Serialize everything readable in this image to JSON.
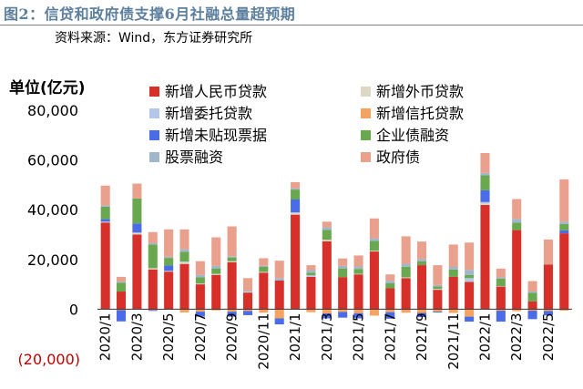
{
  "header": {
    "figure_title": "图2：信贷和政府债支撑6月社融总量超预期",
    "source_note": "资料来源：Wind，东方证券研究所"
  },
  "chart_data": {
    "type": "bar",
    "stacked": true,
    "unit_label": "单位(亿元)",
    "ylim": [
      -20000,
      80000
    ],
    "yticks": [
      -20000,
      0,
      20000,
      40000,
      60000,
      80000
    ],
    "ytick_labels": [
      "(20,000)",
      "0",
      "20,000",
      "40,000",
      "60,000",
      "80,000"
    ],
    "negative_tick_color": "#c00000",
    "grid": false,
    "legend_position": "top",
    "categories": [
      "2020/1",
      "2020/2",
      "2020/3",
      "2020/4",
      "2020/5",
      "2020/6",
      "2020/7",
      "2020/8",
      "2020/9",
      "2020/10",
      "2020/11",
      "2020/12",
      "2021/1",
      "2021/2",
      "2021/3",
      "2021/4",
      "2021/5",
      "2021/6",
      "2021/7",
      "2021/8",
      "2021/9",
      "2021/10",
      "2021/11",
      "2021/12",
      "2022/1",
      "2022/2",
      "2022/3",
      "2022/4",
      "2022/5",
      "2022/6"
    ],
    "xtick_labels": [
      "2020/1",
      "2020/3",
      "2020/5",
      "2020/7",
      "2020/9",
      "2020/11",
      "2021/1",
      "2021/3",
      "2021/5",
      "2021/7",
      "2021/9",
      "2021/11",
      "2022/1",
      "2022/3",
      "2022/5"
    ],
    "series": [
      {
        "name": "新增人民币贷款",
        "color": "#d7302b",
        "values": [
          34900,
          7100,
          30000,
          16000,
          15100,
          18200,
          10000,
          13800,
          18900,
          6700,
          14700,
          11500,
          38000,
          13100,
          27300,
          12900,
          14000,
          23200,
          8400,
          12500,
          17700,
          7800,
          13000,
          11000,
          41900,
          9100,
          31800,
          3100,
          18000,
          30500
        ]
      },
      {
        "name": "新增外币贷款",
        "color": "#ded7c5",
        "values": [
          100,
          0,
          800,
          500,
          300,
          700,
          300,
          400,
          400,
          300,
          300,
          0,
          900,
          100,
          600,
          0,
          200,
          300,
          0,
          300,
          0,
          200,
          0,
          0,
          600,
          200,
          0,
          0,
          0,
          0
        ]
      },
      {
        "name": "新增委托贷款",
        "color": "#b4c7e7",
        "values": [
          200,
          0,
          0,
          0,
          0,
          200,
          0,
          0,
          0,
          0,
          0,
          0,
          0,
          500,
          0,
          0,
          0,
          0,
          0,
          0,
          0,
          200,
          0,
          1500,
          600,
          0,
          0,
          0,
          0,
          0
        ]
      },
      {
        "name": "新增信托贷款",
        "color": "#f4a460",
        "values": [
          0,
          -400,
          0,
          -400,
          -200,
          -1300,
          -1000,
          -500,
          -1000,
          -700,
          -1400,
          -3700,
          0,
          -1200,
          -1700,
          -1100,
          -1600,
          -2600,
          -1200,
          -1400,
          -1500,
          -900,
          -1500,
          -3000,
          0,
          -600,
          -800,
          -600,
          -700,
          -600
        ]
      },
      {
        "name": "新增未贴现票据",
        "color": "#4a6ce8",
        "values": [
          1000,
          -4500,
          3700,
          -300,
          2200,
          0,
          -2000,
          0,
          -2000,
          -1700,
          0,
          -2400,
          5200,
          0,
          -2000,
          -2300,
          -2100,
          0,
          -2600,
          0,
          -1700,
          -400,
          0,
          -2000,
          4700,
          -4400,
          0,
          -3400,
          -1800,
          1200
        ]
      },
      {
        "name": "企业债融资",
        "color": "#6aa84f",
        "values": [
          5000,
          3500,
          10000,
          9500,
          3000,
          4000,
          2500,
          2200,
          1500,
          0,
          2000,
          0,
          4000,
          1000,
          4000,
          3500,
          2000,
          4000,
          2000,
          4300,
          1500,
          1000,
          3000,
          1300,
          6000,
          3000,
          3000,
          3500,
          0,
          2500
        ]
      },
      {
        "name": "股票融资",
        "color": "#9fb6cb",
        "values": [
          500,
          500,
          0,
          500,
          500,
          1000,
          1000,
          1000,
          500,
          500,
          500,
          1000,
          500,
          1000,
          1000,
          1000,
          1000,
          1000,
          1000,
          1200,
          1000,
          500,
          1000,
          2000,
          1000,
          500,
          1500,
          500,
          0,
          1000
        ]
      },
      {
        "name": "政府债",
        "color": "#e9a18e",
        "values": [
          8000,
          1900,
          6000,
          4500,
          11000,
          8000,
          5500,
          11500,
          12000,
          5000,
          3000,
          7000,
          2500,
          2000,
          2300,
          3000,
          4400,
          8000,
          2600,
          11000,
          7000,
          8000,
          9000,
          11000,
          8000,
          3500,
          8000,
          4200,
          10000,
          17000
        ]
      }
    ]
  }
}
